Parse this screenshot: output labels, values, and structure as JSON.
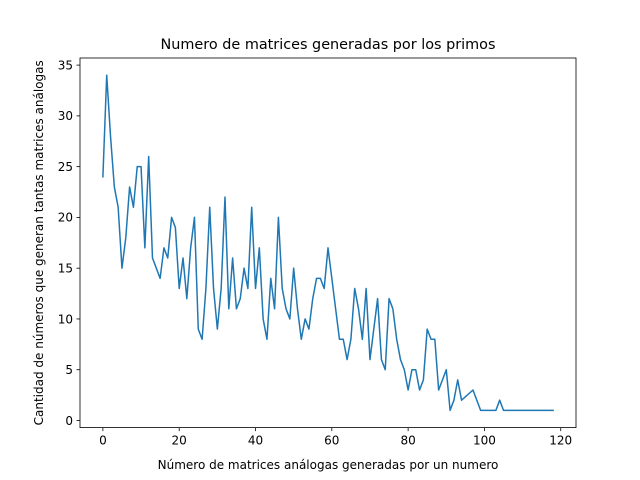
{
  "chart_data": {
    "type": "line",
    "title": "Numero de matrices generadas por los primos",
    "xlabel": "Número de matrices análogas generadas por un numero",
    "ylabel": "Cantidad de números que generan tantas matrices análogas",
    "xlim": [
      -6.0,
      124.0
    ],
    "ylim": [
      -0.7,
      35.7
    ],
    "xticks": [
      0,
      20,
      40,
      60,
      80,
      100,
      120
    ],
    "yticks": [
      0,
      5,
      10,
      15,
      20,
      25,
      30,
      35
    ],
    "grid": false,
    "line_color": "#1f77b4",
    "series": [
      {
        "x": [
          0,
          1,
          2,
          3,
          4,
          5,
          6,
          7,
          8,
          9,
          10,
          11,
          12,
          13,
          14,
          15,
          16,
          17,
          18,
          19,
          20,
          21,
          22,
          23,
          24,
          25,
          26,
          27,
          28,
          29,
          30,
          31,
          32,
          33,
          34,
          35,
          36,
          37,
          38,
          39,
          40,
          41,
          42,
          43,
          44,
          45,
          46,
          47,
          48,
          49,
          50,
          51,
          52,
          53,
          54,
          55,
          56,
          57,
          58,
          59,
          60,
          61,
          62,
          63,
          64,
          65,
          66,
          67,
          68,
          69,
          70,
          71,
          72,
          73,
          74,
          75,
          76,
          77,
          78,
          79,
          80,
          81,
          82,
          83,
          84,
          85,
          86,
          87,
          88,
          89,
          90,
          91,
          92,
          93,
          94,
          95,
          96,
          97,
          98,
          99,
          100,
          101,
          102,
          103,
          104,
          105,
          106,
          107,
          108,
          109,
          110,
          111,
          112,
          113,
          114,
          115,
          116,
          117,
          118
        ],
        "y": [
          24,
          34,
          28,
          23,
          21,
          15,
          18,
          23,
          21,
          25,
          25,
          17,
          26,
          16,
          15,
          14,
          17,
          16,
          20,
          19,
          13,
          16,
          12,
          17,
          20,
          9,
          8,
          13,
          21,
          13,
          9,
          13,
          22,
          11,
          16,
          11,
          12,
          15,
          13,
          21,
          13,
          17,
          10,
          8,
          14,
          11,
          20,
          13,
          11,
          10,
          15,
          11,
          8,
          10,
          9,
          12,
          14,
          14,
          13,
          17,
          14,
          11,
          8,
          8,
          6,
          8,
          13,
          11,
          8,
          13,
          6,
          9,
          12,
          6,
          5,
          12,
          11,
          8,
          6,
          5,
          3,
          5,
          5,
          3,
          4,
          9,
          8,
          8,
          3,
          4,
          5,
          1,
          2,
          4,
          2,
          2.33,
          2.67,
          3,
          2,
          1,
          1,
          1,
          1,
          1,
          2,
          1,
          1,
          1,
          1,
          1,
          1,
          1,
          1,
          1,
          1,
          1,
          1,
          1,
          1
        ]
      }
    ]
  }
}
